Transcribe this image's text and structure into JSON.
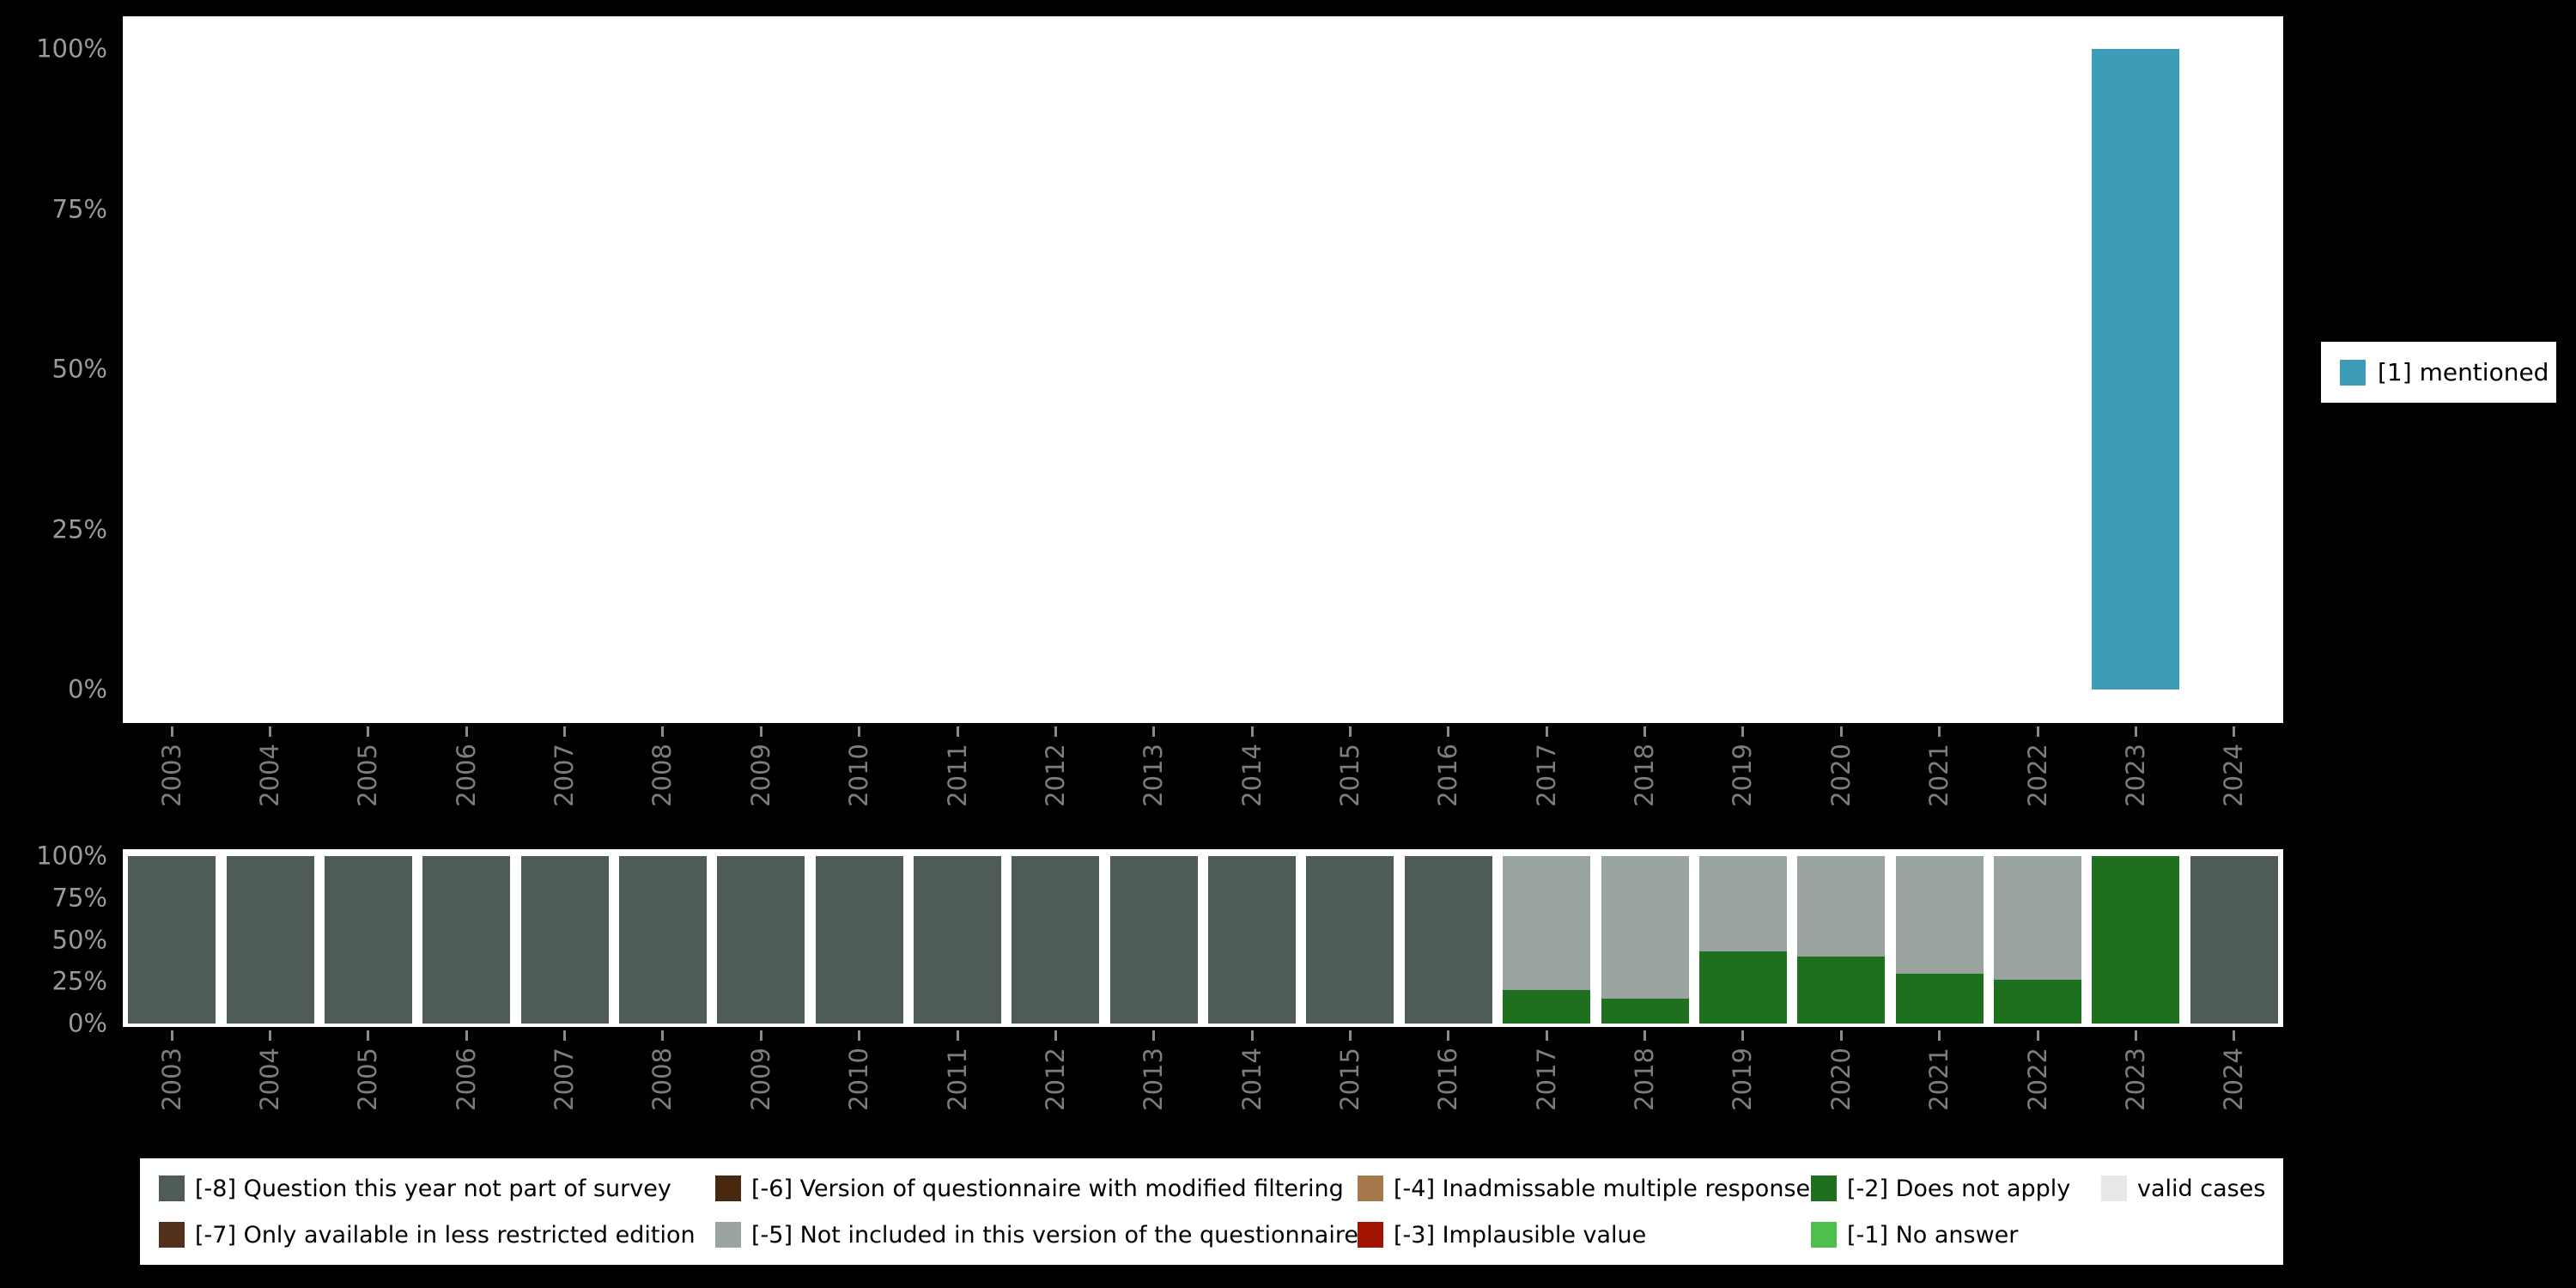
{
  "colors": {
    "mentioned": "#3D9CB8",
    "m8": "#4F5B55",
    "m7": "#53301B",
    "m6": "#48290E",
    "m5": "#9AA49E",
    "m4": "#A6794C",
    "m3": "#A31400",
    "m2": "#1E701E",
    "m1": "#4CBF4C",
    "valid": "#E8E8E8"
  },
  "legend": {
    "items": [
      {
        "color_key": "m8",
        "label": "[-8] Question this year not part of survey"
      },
      {
        "color_key": "m7",
        "label": "[-7] Only available in less restricted edition"
      },
      {
        "color_key": "m6",
        "label": "[-6] Version of questionnaire with modified filtering"
      },
      {
        "color_key": "m5",
        "label": "[-5] Not included in this version of the questionnaire"
      },
      {
        "color_key": "m4",
        "label": "[-4] Inadmissable multiple response"
      },
      {
        "color_key": "m3",
        "label": "[-3] Implausible value"
      },
      {
        "color_key": "m2",
        "label": "[-2] Does not apply"
      },
      {
        "color_key": "m1",
        "label": "[-1] No answer"
      },
      {
        "color_key": "valid",
        "label": "valid cases"
      }
    ]
  },
  "chart_data": [
    {
      "type": "bar",
      "title": "",
      "x": [
        "2003",
        "2004",
        "2005",
        "2006",
        "2007",
        "2008",
        "2009",
        "2010",
        "2011",
        "2012",
        "2013",
        "2014",
        "2015",
        "2016",
        "2017",
        "2018",
        "2019",
        "2020",
        "2021",
        "2022",
        "2023",
        "2024"
      ],
      "series": [
        {
          "name": "[1] mentioned",
          "color_key": "mentioned",
          "values": [
            null,
            null,
            null,
            null,
            null,
            null,
            null,
            null,
            null,
            null,
            null,
            null,
            null,
            null,
            null,
            null,
            null,
            null,
            null,
            null,
            100,
            null
          ]
        }
      ],
      "ylim": [
        0,
        100
      ],
      "yticks_top_to_bottom": [
        "100%",
        "75%",
        "50%",
        "25%",
        "0%"
      ],
      "legend_position": "right",
      "grid": false
    },
    {
      "type": "bar",
      "stacked": true,
      "title": "",
      "x": [
        "2003",
        "2004",
        "2005",
        "2006",
        "2007",
        "2008",
        "2009",
        "2010",
        "2011",
        "2012",
        "2013",
        "2014",
        "2015",
        "2016",
        "2017",
        "2018",
        "2019",
        "2020",
        "2021",
        "2022",
        "2023",
        "2024"
      ],
      "series": [
        {
          "name": "[-8] Question this year not part of survey",
          "color_key": "m8",
          "values": [
            100,
            100,
            100,
            100,
            100,
            100,
            100,
            100,
            100,
            100,
            100,
            100,
            100,
            100,
            0,
            0,
            0,
            0,
            0,
            0,
            0,
            100
          ]
        },
        {
          "name": "[-2] Does not apply",
          "color_key": "m2",
          "values": [
            0,
            0,
            0,
            0,
            0,
            0,
            0,
            0,
            0,
            0,
            0,
            0,
            0,
            0,
            20,
            15,
            43,
            40,
            30,
            26,
            100,
            0
          ]
        },
        {
          "name": "[-5] Not included in this version of the questionnaire",
          "color_key": "m5",
          "values": [
            0,
            0,
            0,
            0,
            0,
            0,
            0,
            0,
            0,
            0,
            0,
            0,
            0,
            0,
            80,
            85,
            57,
            60,
            70,
            74,
            0,
            0
          ]
        }
      ],
      "ylim": [
        0,
        100
      ],
      "yticks_top_to_bottom": [
        "100%",
        "75%",
        "50%",
        "25%",
        "0%"
      ],
      "legend_position": "bottom",
      "grid": false
    }
  ]
}
